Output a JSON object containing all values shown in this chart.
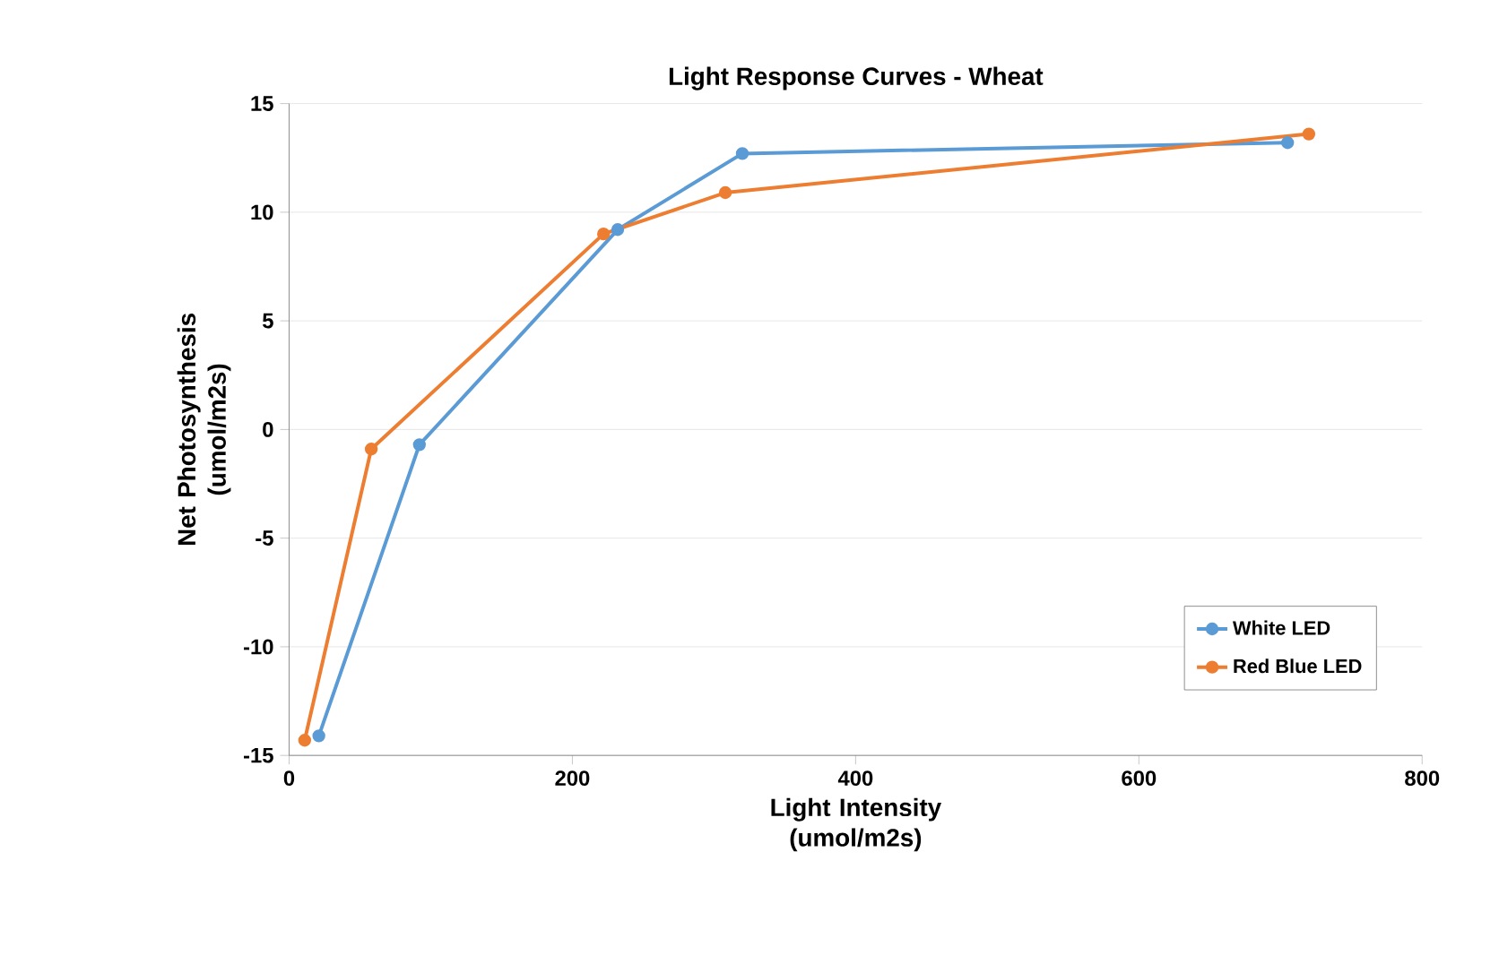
{
  "chart_data": {
    "type": "line",
    "title": "Light Response Curves - Wheat",
    "xlabel": "Light Intensity (umol/m2s)",
    "ylabel": "Net Photosynthesis (umol/m2s)",
    "series": [
      {
        "name": "White LED",
        "color": "#5b9bd5",
        "x": [
          21,
          92,
          232,
          320,
          705
        ],
        "values": [
          -14.1,
          -0.7,
          9.2,
          12.7,
          13.2
        ]
      },
      {
        "name": "Red Blue LED",
        "color": "#ed7d31",
        "x": [
          11,
          58,
          222,
          308,
          720
        ],
        "values": [
          -14.3,
          -0.9,
          9.0,
          10.9,
          13.6
        ]
      }
    ],
    "xlim": [
      0,
      800
    ],
    "xticks": [
      0,
      200,
      400,
      600,
      800
    ],
    "ylim": [
      -15,
      15
    ],
    "yticks": [
      -15,
      -10,
      -5,
      0,
      5,
      10,
      15
    ],
    "grid": "y",
    "legend": "bottom right",
    "marker": "circle",
    "line_style": "solid"
  }
}
